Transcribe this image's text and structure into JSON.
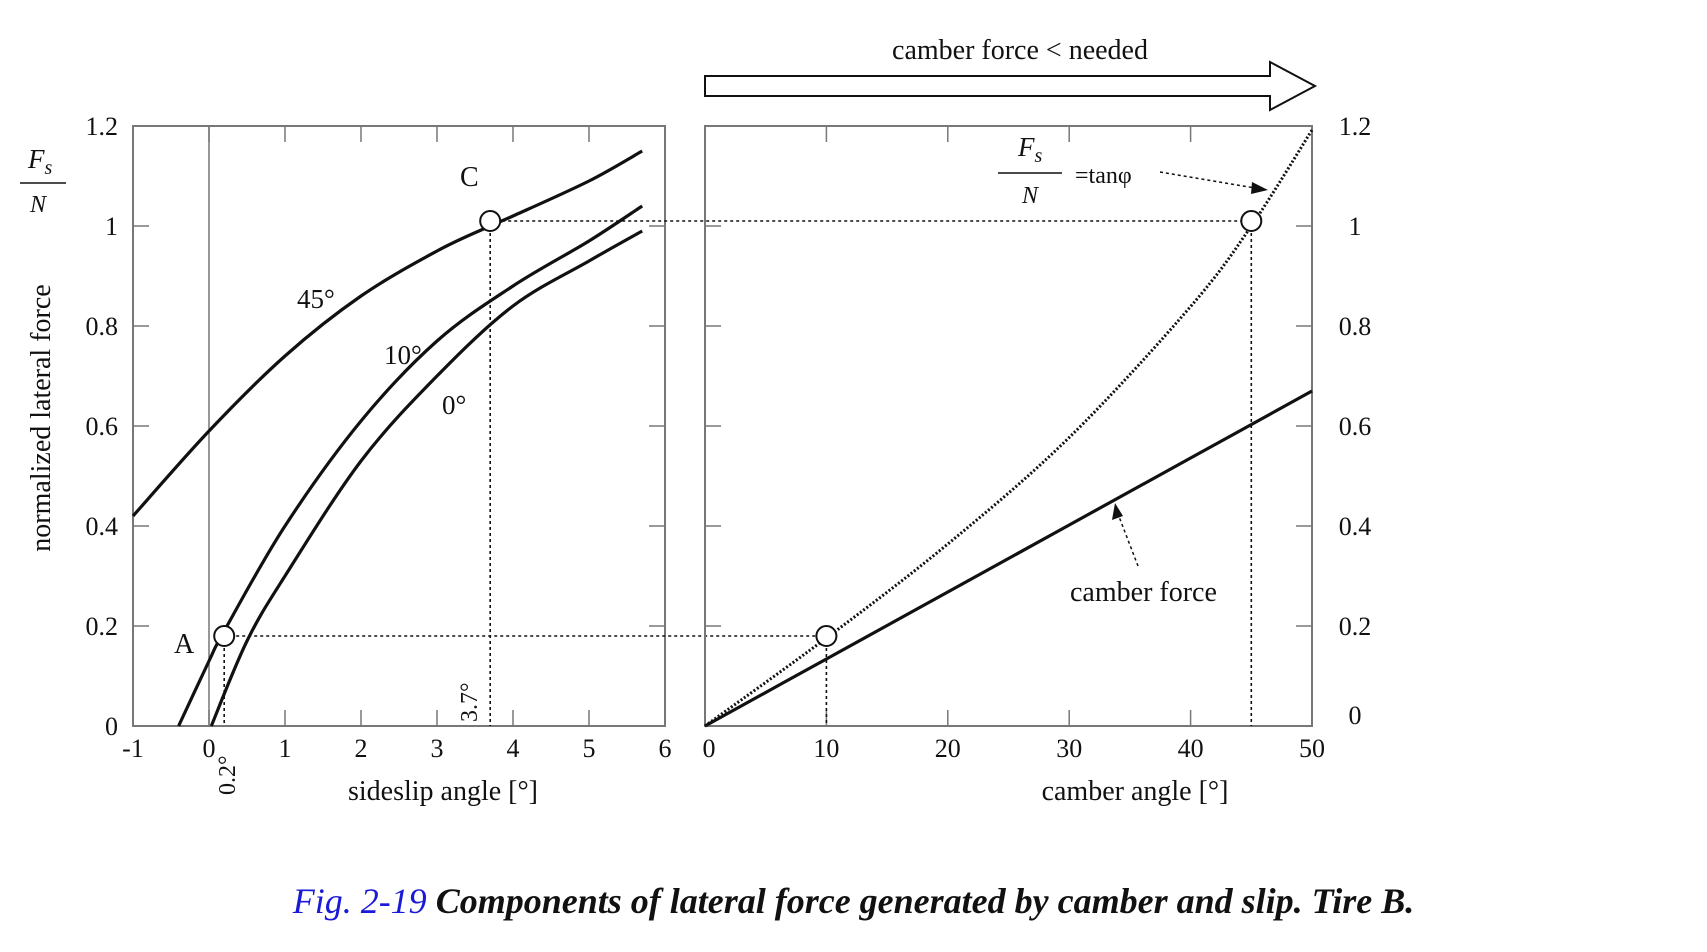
{
  "caption": {
    "figure_number": "Fig. 2-19",
    "text": "Components of lateral force generated by camber and slip. Tire B."
  },
  "chart_data": [
    {
      "type": "line",
      "xlabel": "sideslip angle [°]",
      "ylabel": "normalized lateral force",
      "ylabel_fraction": {
        "numerator": "F",
        "subscript": "s",
        "denominator": "N"
      },
      "xlim": [
        -1,
        6
      ],
      "ylim": [
        0,
        1.2
      ],
      "xticks": [
        "-1",
        "0",
        "1",
        "2",
        "3",
        "4",
        "5",
        "6"
      ],
      "xtick_values": [
        -1,
        0,
        1,
        2,
        3,
        4,
        5,
        6
      ],
      "yticks": [
        "0",
        "0.2",
        "0.4",
        "0.6",
        "0.8",
        "1",
        "1.2"
      ],
      "ytick_values": [
        0,
        0.2,
        0.4,
        0.6,
        0.8,
        1.0,
        1.2
      ],
      "series": [
        {
          "name": "45°",
          "x": [
            -1,
            0,
            1,
            2,
            3,
            3.7,
            4,
            5,
            5.7
          ],
          "y": [
            0.42,
            0.59,
            0.74,
            0.86,
            0.95,
            1.0,
            1.02,
            1.09,
            1.15
          ]
        },
        {
          "name": "10°",
          "x": [
            -0.4,
            0,
            0.2,
            1,
            2,
            3,
            4,
            5,
            5.7
          ],
          "y": [
            0.0,
            0.13,
            0.19,
            0.4,
            0.61,
            0.77,
            0.88,
            0.97,
            1.04
          ]
        },
        {
          "name": "0°",
          "x": [
            0.03,
            0.5,
            1,
            2,
            3,
            4,
            5,
            5.7
          ],
          "y": [
            0.0,
            0.17,
            0.3,
            0.53,
            0.7,
            0.84,
            0.93,
            0.99
          ]
        }
      ],
      "points": [
        {
          "label": "A",
          "x": 0.2,
          "y": 0.18
        },
        {
          "label": "C",
          "x": 3.7,
          "y": 1.01
        }
      ],
      "annotations": [
        "0.2°",
        "3.7°"
      ]
    },
    {
      "type": "line",
      "xlabel": "camber angle [°]",
      "xlim": [
        0,
        50
      ],
      "ylim": [
        0,
        1.2
      ],
      "xticks": [
        "0",
        "10",
        "20",
        "30",
        "40",
        "50"
      ],
      "xtick_values": [
        0,
        10,
        20,
        30,
        40,
        50
      ],
      "yticks": [
        "0",
        "0.2",
        "0.4",
        "0.6",
        "0.8",
        "1",
        "1.2"
      ],
      "ytick_values": [
        0,
        0.2,
        0.4,
        0.6,
        0.8,
        1.0,
        1.2
      ],
      "series": [
        {
          "name": "tanφ",
          "style": "dotted",
          "x": [
            0,
            10,
            20,
            30,
            40,
            45,
            50
          ],
          "y": [
            0,
            0.176,
            0.364,
            0.577,
            0.839,
            1.0,
            1.192
          ]
        },
        {
          "name": "camber force",
          "style": "solid",
          "x": [
            0,
            10,
            20,
            30,
            40,
            50
          ],
          "y": [
            0,
            0.134,
            0.268,
            0.402,
            0.536,
            0.67
          ]
        }
      ],
      "points": [
        {
          "x": 10,
          "y": 0.18
        },
        {
          "x": 45,
          "y": 1.01
        }
      ],
      "annotations": {
        "tan_label": "=tanφ",
        "camber_force_label": "camber force",
        "arrow_label": "camber force < needed"
      }
    }
  ]
}
